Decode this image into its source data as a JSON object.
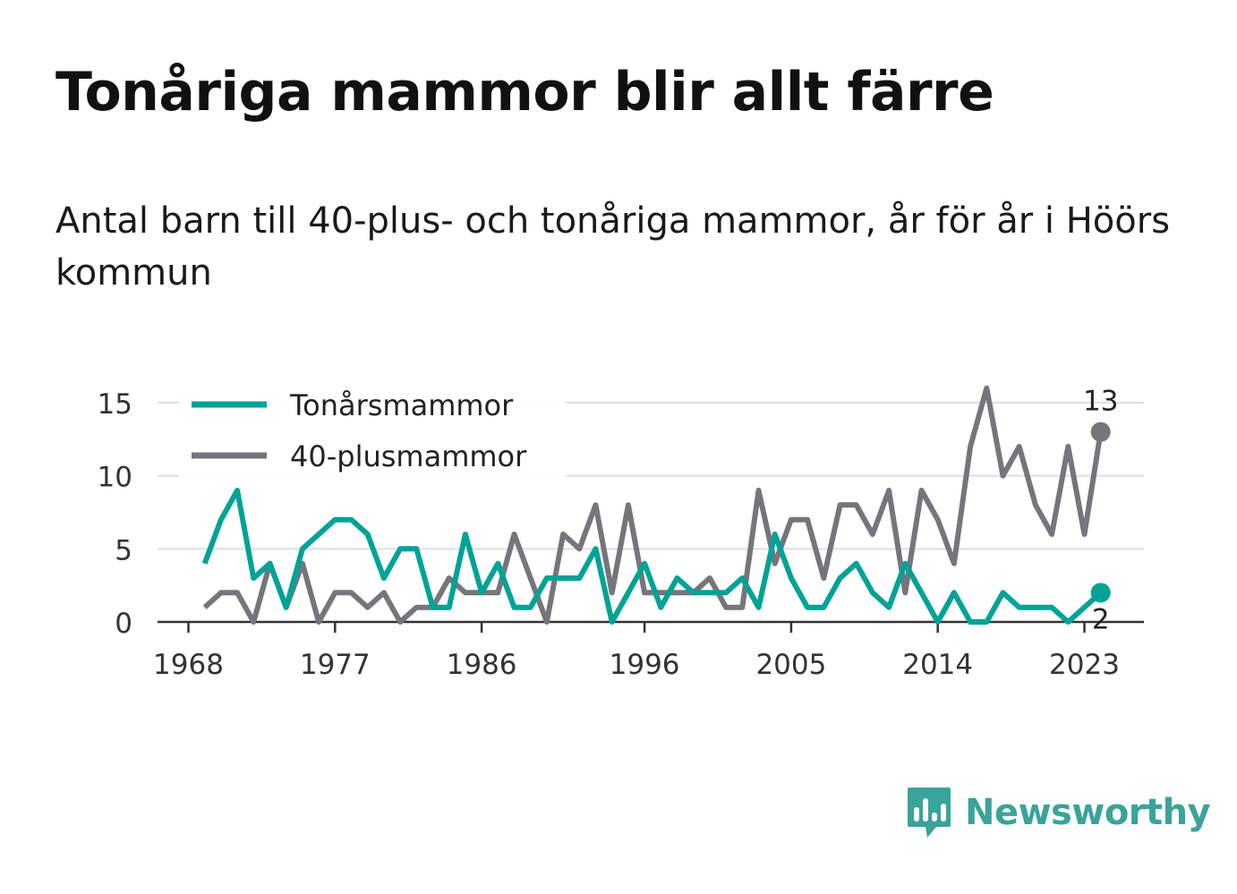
{
  "title": "Tonåriga mammor blir allt färre",
  "subtitle": "Antal barn till 40-plus- och tonåriga mammor, år för år i Höörs kommun",
  "brand": {
    "name": "Newsworthy",
    "color": "#3aa39a",
    "icon": "bar-chart-speech-bubble-icon"
  },
  "chart_data": {
    "type": "line",
    "x": [
      1969,
      1970,
      1971,
      1972,
      1973,
      1974,
      1975,
      1976,
      1977,
      1978,
      1979,
      1980,
      1981,
      1982,
      1983,
      1984,
      1985,
      1986,
      1987,
      1988,
      1989,
      1990,
      1991,
      1992,
      1993,
      1994,
      1995,
      1996,
      1997,
      1998,
      1999,
      2000,
      2001,
      2002,
      2003,
      2004,
      2005,
      2006,
      2007,
      2008,
      2009,
      2010,
      2011,
      2012,
      2013,
      2014,
      2015,
      2016,
      2017,
      2018,
      2019,
      2020,
      2021,
      2022,
      2023,
      2024
    ],
    "series": [
      {
        "name": "Tonårsmammor",
        "color": "#00a396",
        "values": [
          4,
          7,
          9,
          3,
          4,
          1,
          5,
          6,
          7,
          7,
          6,
          3,
          5,
          5,
          1,
          1,
          6,
          2,
          4,
          1,
          1,
          3,
          3,
          3,
          5,
          0,
          2,
          4,
          1,
          3,
          2,
          2,
          2,
          3,
          1,
          6,
          3,
          1,
          1,
          3,
          4,
          2,
          1,
          4,
          2,
          0,
          2,
          0,
          0,
          2,
          1,
          1,
          1,
          0,
          1,
          2
        ]
      },
      {
        "name": "40-plusmammor",
        "color": "#76757b",
        "values": [
          1,
          2,
          2,
          0,
          4,
          1,
          4,
          0,
          2,
          2,
          1,
          2,
          0,
          1,
          1,
          3,
          2,
          2,
          2,
          6,
          3,
          0,
          6,
          5,
          8,
          2,
          8,
          2,
          2,
          2,
          2,
          3,
          1,
          1,
          9,
          4,
          7,
          7,
          3,
          8,
          8,
          6,
          9,
          2,
          9,
          7,
          4,
          12,
          16,
          10,
          12,
          8,
          6,
          12,
          6,
          13
        ]
      }
    ],
    "end_labels": [
      "2",
      "13"
    ],
    "x_ticks": [
      1968,
      1977,
      1986,
      1996,
      2005,
      2014,
      2023
    ],
    "x_tick_labels": [
      "1968",
      "1977",
      "1986",
      "1996",
      "2005",
      "2014",
      "2023"
    ],
    "y_ticks": [
      0,
      5,
      10,
      15
    ],
    "y_tick_labels": [
      "0",
      "5",
      "10",
      "15"
    ],
    "xlim": [
      1968,
      2027
    ],
    "ylim": [
      0,
      15
    ],
    "grid": true,
    "legend_position": "top-left",
    "xlabel": "",
    "ylabel": ""
  }
}
